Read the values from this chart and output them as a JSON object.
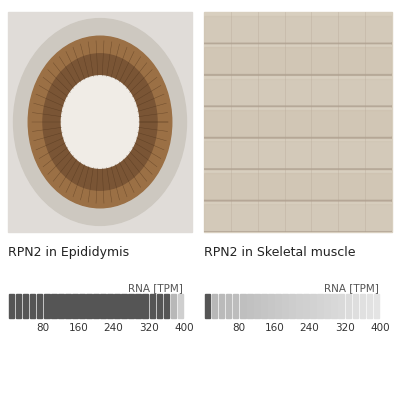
{
  "bg_color": "#ffffff",
  "label_left": "RPN2 in Epididymis",
  "label_right": "RPN2 in Skeletal muscle",
  "rna_label": "RNA [TPM]",
  "tick_labels": [
    80,
    160,
    240,
    320,
    400
  ],
  "n_segments": 25,
  "dark_color": "#555555",
  "light_color": "#d8d8d8",
  "epididymis_value": 370,
  "skeletal_value": 15,
  "max_value": 400,
  "label_fontsize": 9,
  "tick_fontsize": 7.5,
  "rna_label_fontsize": 7.5,
  "img_bg_left": "#e0dcd8",
  "img_bg_right": "#d8cfbf",
  "brown_outer": "#7a5535",
  "brown_mid": "#9b7045",
  "lumen_color": "#f0ece6",
  "muscle_color": "#c8baa8"
}
